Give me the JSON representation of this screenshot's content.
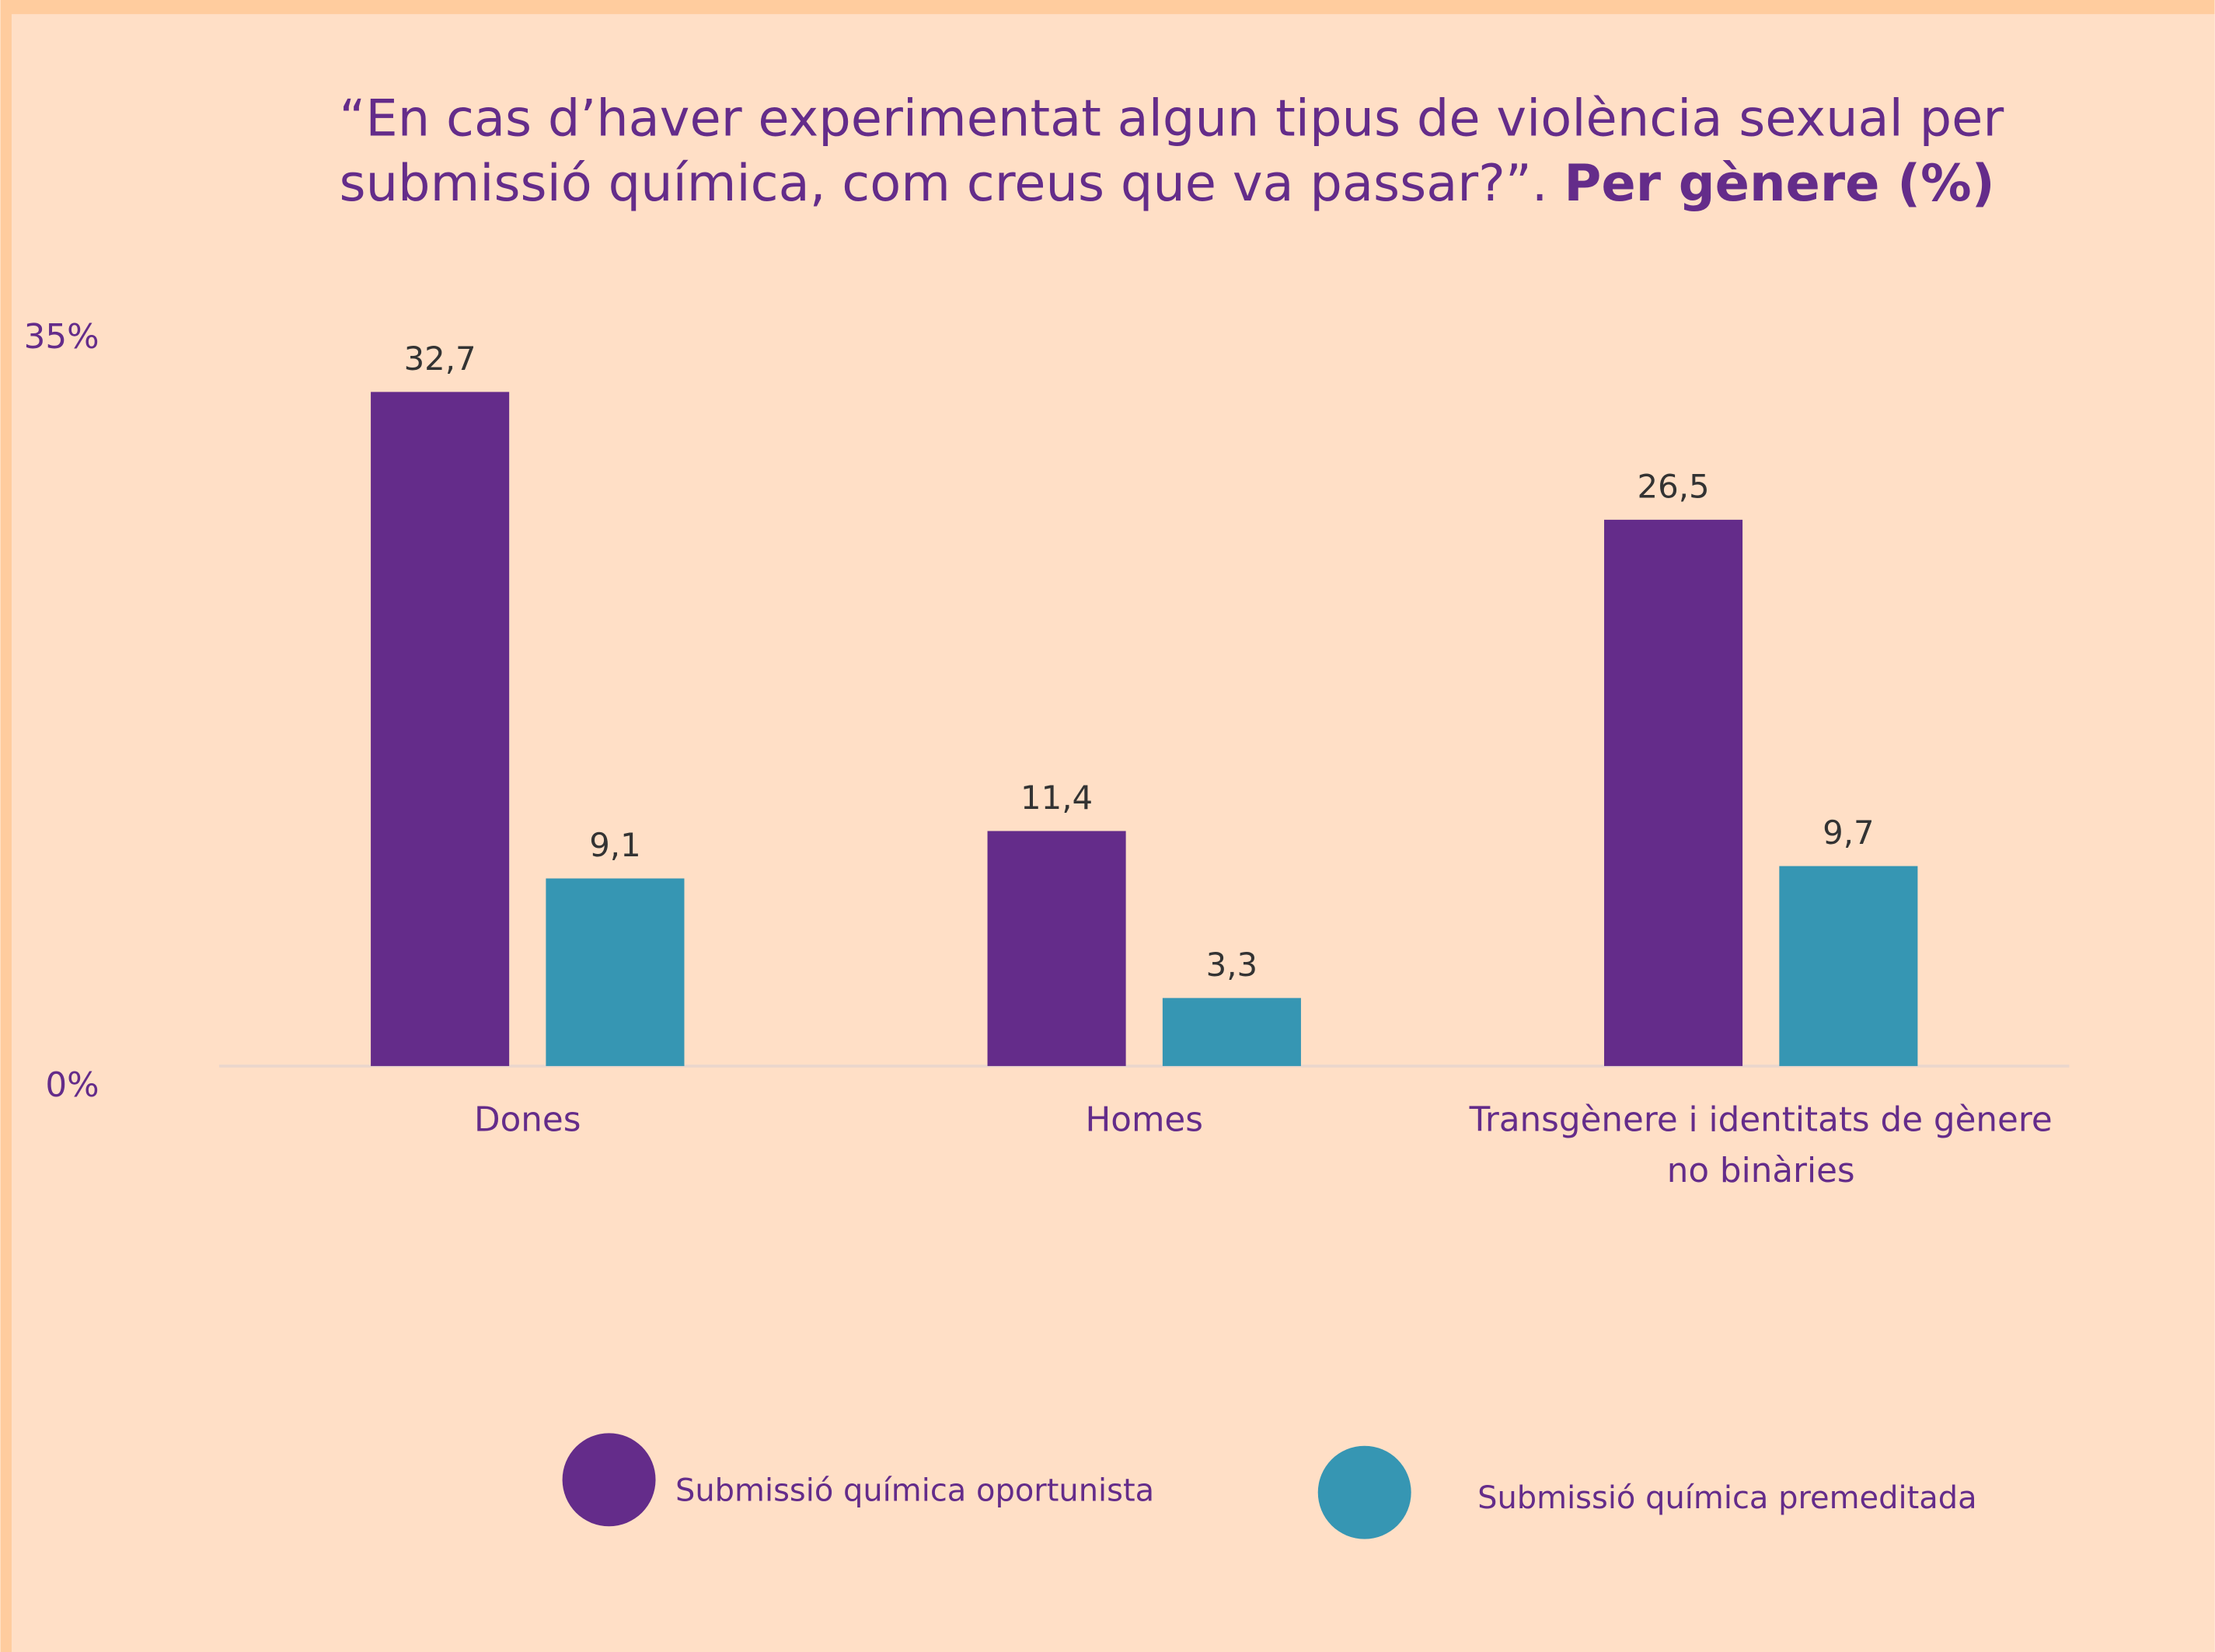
{
  "chart_data": {
    "type": "bar",
    "title": "“En cas d’haver experimentat algun tipus de violència sexual per submissió química, com creus que va passar?”.",
    "title_bold": "Per gènere (%)",
    "categories": [
      "Dones",
      "Homes",
      "Transgènere i identitats de gènere no binàries"
    ],
    "series": [
      {
        "name": "Submissió química oportunista",
        "color": "#642c8a",
        "values": [
          32.7,
          11.4,
          26.5
        ],
        "value_labels": [
          "32,7",
          "11,4",
          "26,5"
        ]
      },
      {
        "name": "Submissió química premeditada",
        "color": "#3696b3",
        "values": [
          9.1,
          3.3,
          9.7
        ],
        "value_labels": [
          "9,1",
          "3,3",
          "9,7"
        ]
      }
    ],
    "ylim": [
      0,
      35
    ],
    "yticks": [
      {
        "value": 0,
        "label": "0%"
      },
      {
        "value": 35,
        "label": "35%"
      }
    ],
    "grid": false,
    "legend": "bottom"
  }
}
